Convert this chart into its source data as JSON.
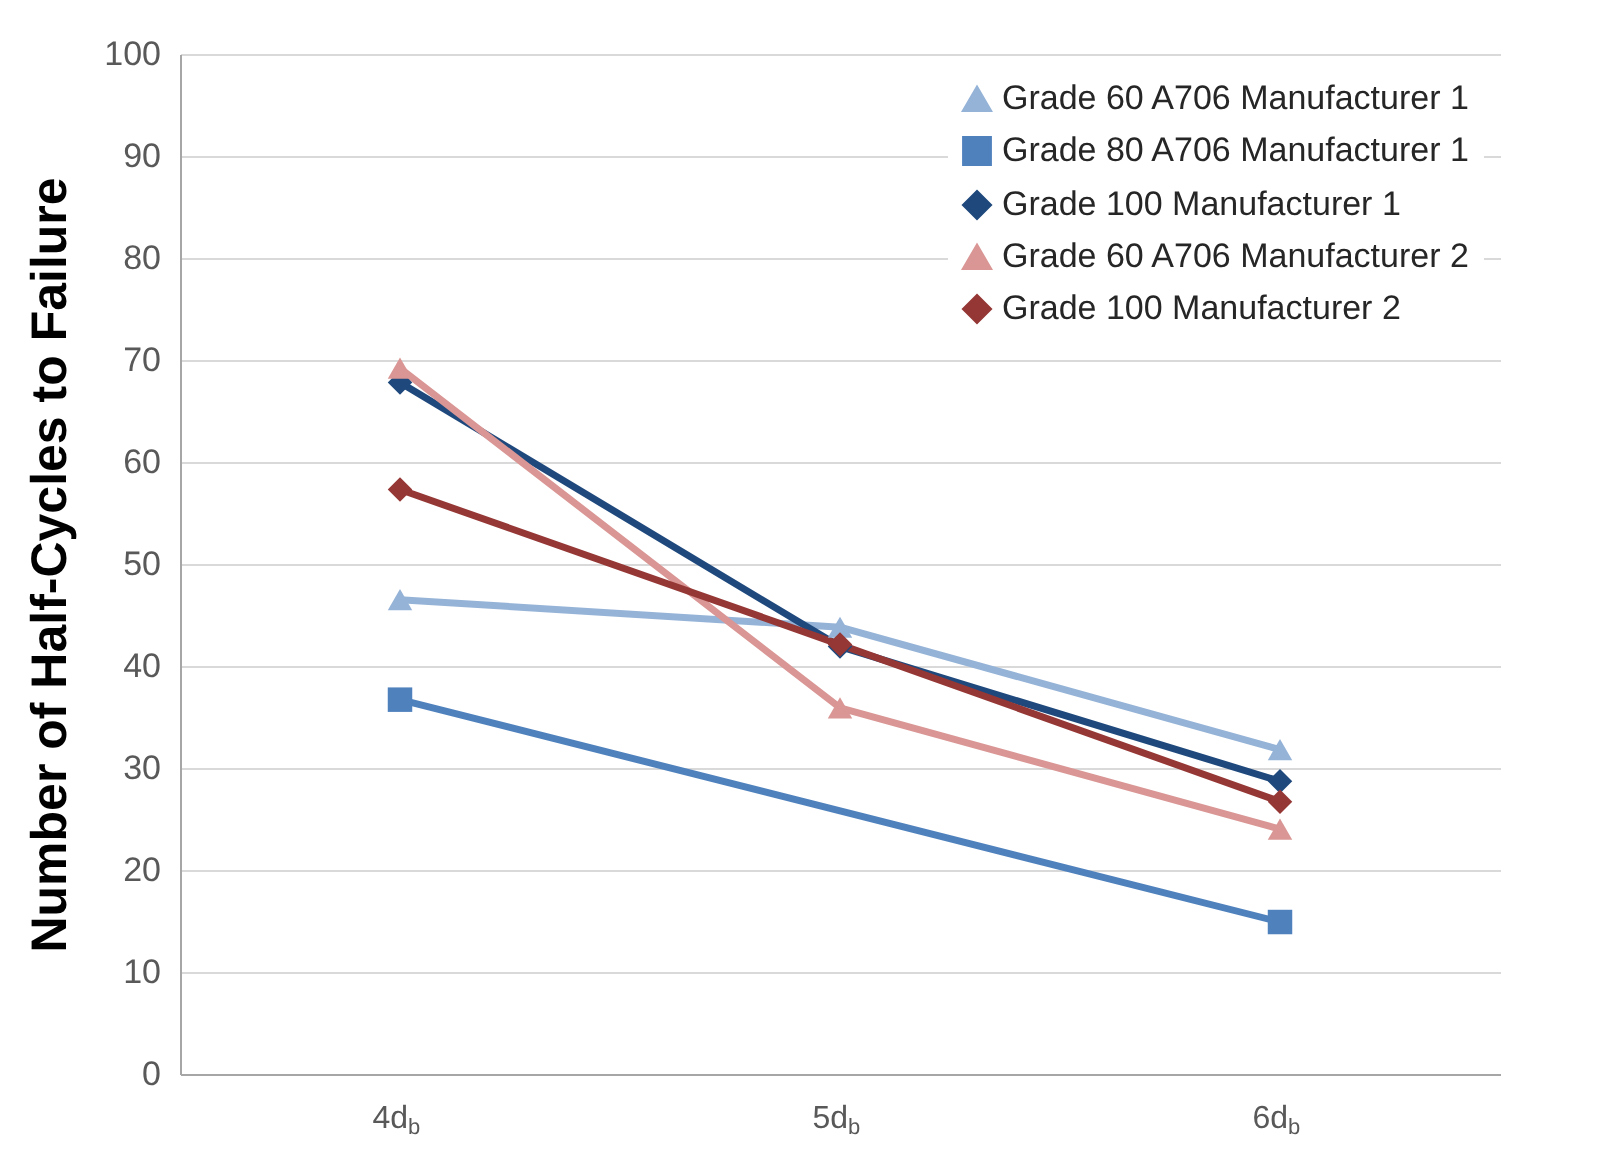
{
  "chart_data": {
    "type": "line",
    "ylabel": "Number of Half-Cycles to Failure",
    "categories": [
      "4d$_{b}$",
      "5d$_{b}$",
      "6d$_{b}$"
    ],
    "series": [
      {
        "name": "Grade 60 A706 Manufacturer 1",
        "color": "#95b3d7",
        "marker": "triangle",
        "values": [
          46.5,
          43.8,
          31.8
        ]
      },
      {
        "name": "Grade 80 A706 Manufacturer 1",
        "color": "#4f81bd",
        "marker": "square",
        "values": [
          36.7,
          null,
          14.9
        ]
      },
      {
        "name": "Grade 100 Manufacturer 1",
        "color": "#1f497d",
        "marker": "diamond",
        "values": [
          67.8,
          41.9,
          28.7
        ]
      },
      {
        "name": "Grade 60 A706 Manufacturer 2",
        "color": "#d99694",
        "marker": "triangle",
        "values": [
          69.2,
          35.9,
          24.0
        ]
      },
      {
        "name": "Grade 100 Manufacturer 2",
        "color": "#953735",
        "marker": "diamond",
        "values": [
          57.3,
          42.1,
          26.7
        ]
      }
    ],
    "ylim": [
      0,
      100
    ],
    "yticks": [
      0,
      10,
      20,
      30,
      40,
      50,
      60,
      70,
      80,
      90,
      100
    ],
    "grid": "y",
    "legend": "top right",
    "line_style": "solid"
  }
}
